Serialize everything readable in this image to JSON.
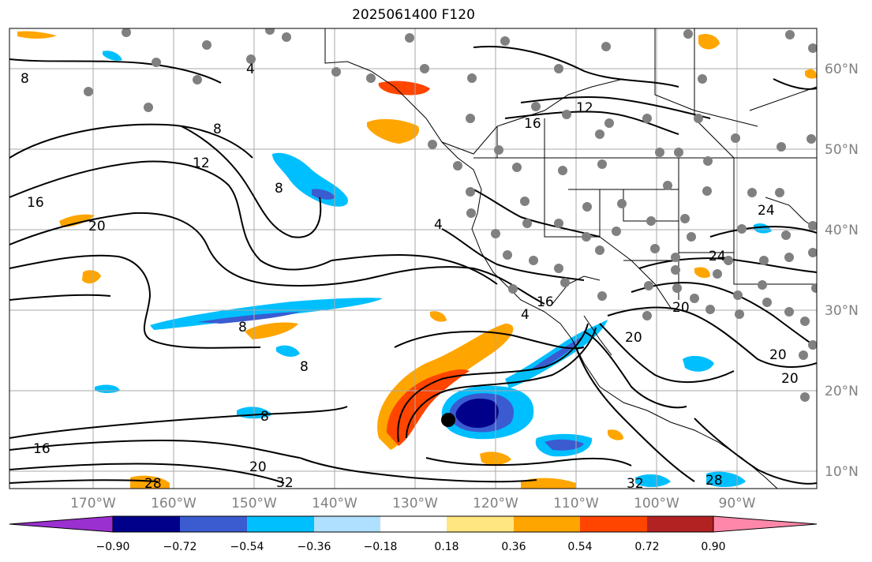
{
  "title": "2025061400 F120",
  "lon_labels": [
    "170°W",
    "160°W",
    "150°W",
    "140°W",
    "130°W",
    "120°W",
    "110°W",
    "100°W",
    "90°W"
  ],
  "lat_labels": [
    "60°N",
    "50°N",
    "40°N",
    "30°N",
    "20°N",
    "10°N"
  ],
  "colorbar": {
    "labels": [
      "−0.90",
      "−0.72",
      "−0.54",
      "−0.36",
      "−0.18",
      "0.18",
      "0.36",
      "0.54",
      "0.72",
      "0.90"
    ],
    "colors": [
      "#9b30d0",
      "#00008b",
      "#3b5bd0",
      "#00bfff",
      "#afe0ff",
      "#ffffff",
      "#ffe680",
      "#ffa500",
      "#ff4500",
      "#b22222",
      "#ff88aa"
    ]
  },
  "contour_labels": [
    "8",
    "12",
    "16",
    "20",
    "8",
    "16",
    "12",
    "4",
    "8",
    "4",
    "16",
    "20",
    "24",
    "24",
    "20",
    "20",
    "20",
    "32",
    "28",
    "28",
    "32",
    "20",
    "16",
    "8",
    "8",
    "8",
    "4"
  ],
  "colors": {
    "negative_strong": "#00008b",
    "negative": "#3b5bd0",
    "negative_light": "#00bfff",
    "positive": "#ffa500",
    "positive_strong": "#ff4500",
    "station": "#808080"
  }
}
